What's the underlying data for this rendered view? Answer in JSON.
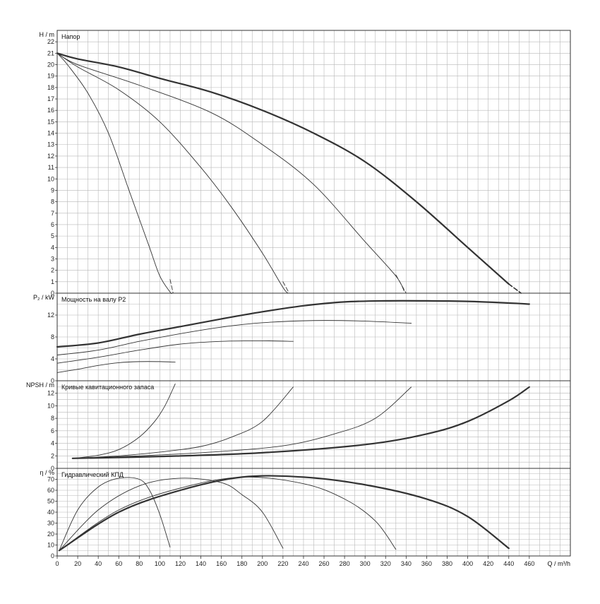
{
  "chart_data": {
    "type": "line",
    "x_axis": {
      "label": "Q / m³/h",
      "range": [
        0,
        500
      ],
      "ticks": [
        0,
        20,
        40,
        60,
        80,
        100,
        120,
        140,
        160,
        180,
        200,
        220,
        240,
        260,
        280,
        300,
        320,
        340,
        360,
        380,
        400,
        420,
        440,
        460
      ]
    },
    "panels": [
      {
        "id": "head",
        "title": "Напор",
        "ylabel": "H / m",
        "ylim": [
          0,
          23
        ],
        "ticks": [
          0,
          1,
          2,
          3,
          4,
          5,
          6,
          7,
          8,
          9,
          10,
          11,
          12,
          13,
          14,
          15,
          16,
          17,
          18,
          19,
          20,
          21,
          22
        ],
        "series": [
          {
            "weight": 1,
            "x": [
              0,
              10,
              30,
              50,
              70,
              80,
              90,
              100,
              110,
              112
            ],
            "y": [
              21,
              20,
              17.5,
              14,
              9,
              6.5,
              4,
              1.5,
              0.1,
              0
            ],
            "ext": {
              "x": [
                110,
                113
              ],
              "y": [
                1.2,
                0
              ]
            }
          },
          {
            "weight": 1,
            "x": [
              0,
              20,
              60,
              100,
              140,
              170,
              200,
              220,
              225
            ],
            "y": [
              21,
              19.8,
              17.8,
              15,
              11,
              7.5,
              3.5,
              0.5,
              0
            ],
            "ext": {
              "x": [
                220,
                226
              ],
              "y": [
                1.0,
                0
              ]
            }
          },
          {
            "weight": 1,
            "x": [
              0,
              20,
              80,
              150,
              200,
              250,
              300,
              330,
              338
            ],
            "y": [
              21,
              20,
              18.2,
              15.8,
              13,
              9.5,
              4.5,
              1.5,
              0.2
            ],
            "ext": {
              "x": [
                330,
                340
              ],
              "y": [
                1.6,
                0
              ]
            }
          },
          {
            "weight": 2,
            "x": [
              0,
              20,
              60,
              100,
              150,
              200,
              250,
              300,
              350,
              400,
              440
            ],
            "y": [
              21,
              20.5,
              19.8,
              18.8,
              17.6,
              16,
              14,
              11.5,
              8,
              4,
              0.8
            ],
            "ext": {
              "x": [
                440,
                452
              ],
              "y": [
                0.8,
                0
              ]
            }
          }
        ]
      },
      {
        "id": "power",
        "title": "Мощность на валу P2",
        "ylabel": "P₂ / kW",
        "ylim": [
          0,
          16
        ],
        "ticks": [
          0,
          4,
          8,
          12
        ],
        "series": [
          {
            "weight": 1,
            "x": [
              0,
              20,
              40,
              60,
              80,
              100,
              115
            ],
            "y": [
              1.5,
              2.1,
              2.8,
              3.3,
              3.5,
              3.5,
              3.4
            ]
          },
          {
            "weight": 1,
            "x": [
              0,
              40,
              80,
              120,
              160,
              200,
              230
            ],
            "y": [
              3.2,
              4.3,
              5.6,
              6.7,
              7.2,
              7.3,
              7.2
            ]
          },
          {
            "weight": 1,
            "x": [
              0,
              40,
              80,
              120,
              160,
              200,
              250,
              300,
              345
            ],
            "y": [
              4.7,
              5.6,
              7.2,
              8.6,
              9.8,
              10.6,
              11,
              10.9,
              10.5
            ]
          },
          {
            "weight": 2,
            "x": [
              0,
              40,
              80,
              120,
              160,
              200,
              240,
              280,
              320,
              360,
              400,
              440,
              460
            ],
            "y": [
              6.2,
              6.9,
              8.5,
              9.9,
              11.3,
              12.6,
              13.7,
              14.4,
              14.6,
              14.6,
              14.5,
              14.2,
              14
            ]
          }
        ]
      },
      {
        "id": "npsh",
        "title": "Кривые кавитационного запаса",
        "ylabel": "NPSH / m",
        "ylim": [
          0,
          14
        ],
        "ticks": [
          0,
          2,
          4,
          6,
          8,
          10,
          12
        ],
        "series": [
          {
            "weight": 1,
            "x": [
              15,
              40,
              60,
              80,
              95,
              105,
              115
            ],
            "y": [
              1.6,
              2.1,
              3,
              5,
              7.5,
              10,
              13.5
            ]
          },
          {
            "weight": 1,
            "x": [
              15,
              60,
              100,
              140,
              170,
              200,
              230
            ],
            "y": [
              1.6,
              2,
              2.6,
              3.5,
              5,
              7.5,
              13
            ]
          },
          {
            "weight": 1,
            "x": [
              15,
              80,
              150,
              220,
              270,
              310,
              345
            ],
            "y": [
              1.6,
              2,
              2.6,
              3.6,
              5.5,
              8,
              13
            ]
          },
          {
            "weight": 2,
            "x": [
              15,
              100,
              200,
              300,
              360,
              400,
              440,
              460
            ],
            "y": [
              1.6,
              1.9,
              2.5,
              3.8,
              5.5,
              7.5,
              10.8,
              13
            ]
          }
        ]
      },
      {
        "id": "eff",
        "title": "Гидравлический КПД",
        "ylabel": "η / %",
        "ylim": [
          0,
          80
        ],
        "ticks": [
          0,
          10,
          20,
          30,
          40,
          50,
          60,
          70
        ],
        "series": [
          {
            "weight": 1,
            "x": [
              2,
              20,
              40,
              60,
              80,
              90,
              100,
              110
            ],
            "y": [
              5,
              42,
              63,
              71,
              70,
              60,
              38,
              8
            ]
          },
          {
            "weight": 1,
            "x": [
              2,
              40,
              80,
              120,
              160,
              180,
              200,
              220
            ],
            "y": [
              5,
              42,
              64,
              71,
              67,
              56,
              40,
              7
            ]
          },
          {
            "weight": 1,
            "x": [
              2,
              60,
              120,
              180,
              240,
              280,
              310,
              330
            ],
            "y": [
              5,
              42,
              62,
              72,
              66,
              52,
              32,
              6
            ]
          },
          {
            "weight": 2,
            "x": [
              2,
              60,
              120,
              180,
              240,
              300,
              360,
              400,
              440
            ],
            "y": [
              5,
              40,
              60,
              72,
              72,
              65,
              52,
              36,
              7
            ]
          }
        ]
      }
    ]
  }
}
